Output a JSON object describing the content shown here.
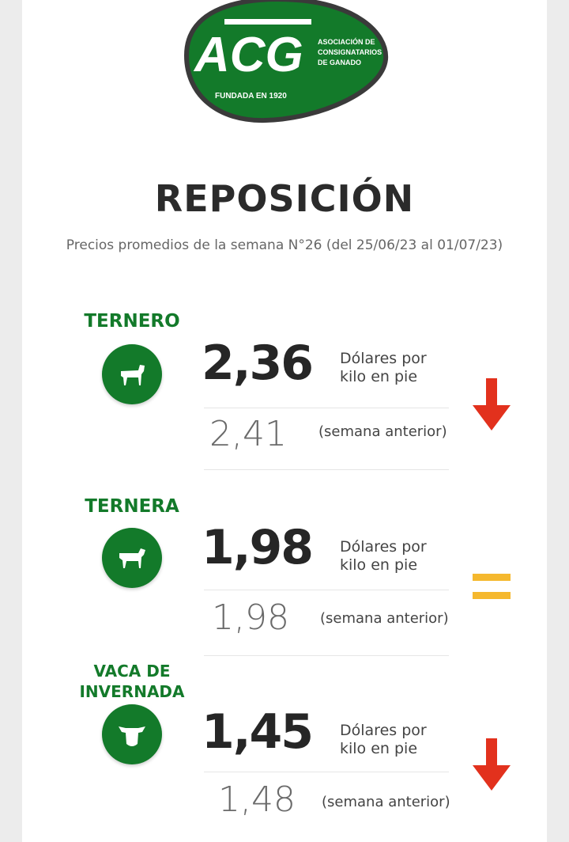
{
  "logo": {
    "letters": "ACG",
    "name_lines": [
      "ASOCIACIÓN DE",
      "CONSIGNATARIOS",
      "DE GANADO"
    ],
    "founded": "FUNDADA EN 1920",
    "color": "#137a2a"
  },
  "header": {
    "title": "REPOSICIÓN",
    "subtitle": "Precios promedios de la semana N°26 (del 25/06/23 al 01/07/23)"
  },
  "categories": [
    {
      "label": "TERNERO",
      "icon": "calf-icon",
      "price": "2,36",
      "unit_line1": "Dólares por",
      "unit_line2": "kilo en pie",
      "previous": "2,41",
      "previous_label": "(semana anterior)",
      "trend": "down"
    },
    {
      "label": "TERNERA",
      "icon": "calf-icon",
      "price": "1,98",
      "unit_line1": "Dólares por",
      "unit_line2": "kilo en pie",
      "previous": "1,98",
      "previous_label": "(semana anterior)",
      "trend": "equal"
    },
    {
      "label_line1": "VACA DE",
      "label_line2": "INVERNADA",
      "icon": "cow-head-icon",
      "price": "1,45",
      "unit_line1": "Dólares por",
      "unit_line2": "kilo en pie",
      "previous": "1,48",
      "previous_label": "(semana anterior)",
      "trend": "down"
    }
  ],
  "colors": {
    "green": "#137a2a",
    "down": "#e2311d",
    "equal": "#f5b82e"
  }
}
